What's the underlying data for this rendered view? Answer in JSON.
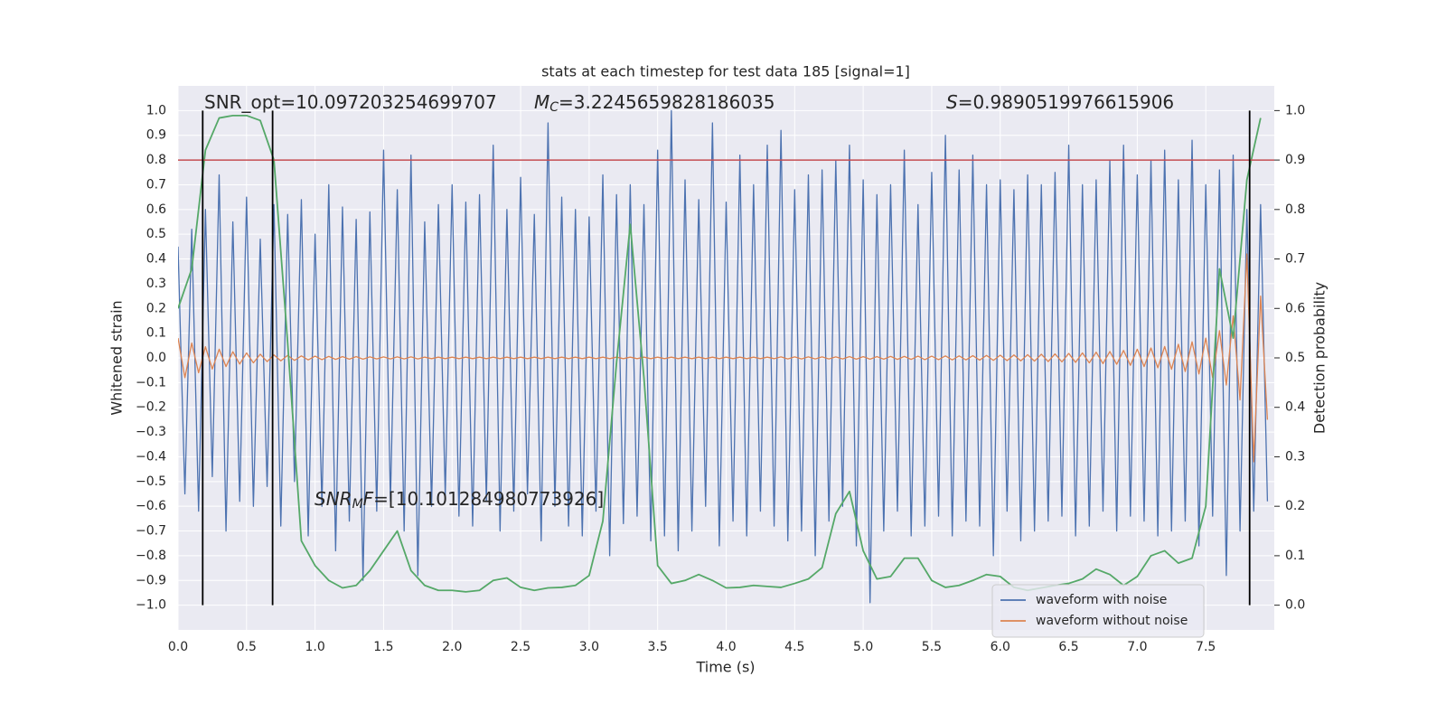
{
  "chart_data": {
    "type": "line",
    "title": "stats at each timestep for test data 185 [signal=1]",
    "xlabel": "Time (s)",
    "ylabel": "Whitened strain",
    "y2label": "Detection probability",
    "xlim": [
      0,
      8.0
    ],
    "ylim": [
      -1.1,
      1.1
    ],
    "y2lim": [
      -0.05,
      1.05
    ],
    "xticks": [
      {
        "value": 0,
        "label": "0.0"
      },
      0.5,
      {
        "value": 1,
        "label": "1.0"
      },
      1.5,
      {
        "value": 2,
        "label": "2.0"
      },
      2.5,
      {
        "value": 3,
        "label": "3.0"
      },
      3.5,
      {
        "value": 4,
        "label": "4.0"
      },
      4.5,
      {
        "value": 5,
        "label": "5.0"
      },
      5.5,
      {
        "value": 6,
        "label": "6.0"
      },
      6.5,
      {
        "value": 7,
        "label": "7.0"
      },
      7.5
    ],
    "yticks": [
      {
        "value": -1,
        "label": "−1.0"
      },
      {
        "value": -0.9,
        "label": "−0.9"
      },
      {
        "value": -0.8,
        "label": "−0.8"
      },
      {
        "value": -0.7,
        "label": "−0.7"
      },
      {
        "value": -0.6,
        "label": "−0.6"
      },
      {
        "value": -0.5,
        "label": "−0.5"
      },
      {
        "value": -0.4,
        "label": "−0.4"
      },
      {
        "value": -0.3,
        "label": "−0.3"
      },
      {
        "value": -0.2,
        "label": "−0.2"
      },
      {
        "value": -0.1,
        "label": "−0.1"
      },
      {
        "value": 0,
        "label": "0.0"
      },
      0.1,
      0.2,
      0.3,
      0.4,
      0.5,
      0.6,
      0.7,
      0.8,
      0.9,
      {
        "value": 1,
        "label": "1.0"
      }
    ],
    "y2ticks": [
      {
        "value": 0,
        "label": "0.0"
      },
      0.1,
      0.2,
      0.3,
      0.4,
      0.5,
      0.6,
      0.7,
      0.8,
      0.9,
      {
        "value": 1,
        "label": "1.0"
      }
    ],
    "grid": true,
    "legend": "lower right",
    "x": [
      0,
      0.05,
      0.1,
      0.15,
      0.2,
      0.25,
      0.3,
      0.35,
      0.4,
      0.45,
      0.5,
      0.55,
      0.6,
      0.65,
      0.7,
      0.75,
      0.8,
      0.85,
      0.9,
      0.95,
      1,
      1.05,
      1.1,
      1.15,
      1.2,
      1.25,
      1.3,
      1.35,
      1.4,
      1.45,
      1.5,
      1.55,
      1.6,
      1.65,
      1.7,
      1.75,
      1.8,
      1.85,
      1.9,
      1.95,
      2,
      2.05,
      2.1,
      2.15,
      2.2,
      2.25,
      2.3,
      2.35,
      2.4,
      2.45,
      2.5,
      2.55,
      2.6,
      2.65,
      2.7,
      2.75,
      2.8,
      2.85,
      2.9,
      2.95,
      3,
      3.05,
      3.1,
      3.15,
      3.2,
      3.25,
      3.3,
      3.35,
      3.4,
      3.45,
      3.5,
      3.55,
      3.6,
      3.65,
      3.7,
      3.75,
      3.8,
      3.85,
      3.9,
      3.95,
      4,
      4.05,
      4.1,
      4.15,
      4.2,
      4.25,
      4.3,
      4.35,
      4.4,
      4.45,
      4.5,
      4.55,
      4.6,
      4.65,
      4.7,
      4.75,
      4.8,
      4.85,
      4.9,
      4.95,
      5,
      5.05,
      5.1,
      5.15,
      5.2,
      5.25,
      5.3,
      5.35,
      5.4,
      5.45,
      5.5,
      5.55,
      5.6,
      5.65,
      5.7,
      5.75,
      5.8,
      5.85,
      5.9,
      5.95,
      6,
      6.05,
      6.1,
      6.15,
      6.2,
      6.25,
      6.3,
      6.35,
      6.4,
      6.45,
      6.5,
      6.55,
      6.6,
      6.65,
      6.7,
      6.75,
      6.8,
      6.85,
      6.9,
      6.95,
      7,
      7.05,
      7.1,
      7.15,
      7.2,
      7.25,
      7.3,
      7.35,
      7.4,
      7.45,
      7.5,
      7.55,
      7.6,
      7.65,
      7.7,
      7.75,
      7.8,
      7.85,
      7.9,
      7.95
    ],
    "series": [
      {
        "name": "waveform with noise",
        "color": "#4c72b0",
        "values": [
          0.45,
          -0.55,
          0.52,
          -0.62,
          0.6,
          -0.48,
          0.74,
          -0.7,
          0.55,
          -0.58,
          0.65,
          -0.6,
          0.48,
          -0.52,
          0.62,
          -0.68,
          0.58,
          -0.5,
          0.64,
          -0.72,
          0.5,
          -0.6,
          0.7,
          -0.78,
          0.61,
          -0.66,
          0.56,
          -0.9,
          0.59,
          -0.62,
          0.84,
          -0.58,
          0.68,
          -0.7,
          0.82,
          -0.88,
          0.55,
          -0.6,
          0.62,
          -0.56,
          0.7,
          -0.64,
          0.63,
          -0.68,
          0.66,
          -0.58,
          0.86,
          -0.7,
          0.6,
          -0.62,
          0.73,
          -0.55,
          0.58,
          -0.74,
          0.95,
          -0.6,
          0.65,
          -0.68,
          0.6,
          -0.72,
          0.57,
          -0.62,
          0.74,
          -0.8,
          0.66,
          -0.67,
          0.7,
          -0.64,
          0.62,
          -0.74,
          0.84,
          -0.72,
          1.0,
          -0.78,
          0.72,
          -0.7,
          0.64,
          -0.6,
          0.95,
          -0.76,
          0.63,
          -0.66,
          0.82,
          -0.72,
          0.7,
          -0.62,
          0.86,
          -0.68,
          0.92,
          -0.74,
          0.68,
          -0.7,
          0.74,
          -0.8,
          0.76,
          -0.66,
          0.8,
          -0.6,
          0.86,
          -0.76,
          0.72,
          -0.99,
          0.66,
          -0.7,
          0.7,
          -0.62,
          0.84,
          -0.72,
          0.62,
          -0.68,
          0.75,
          -0.64,
          0.9,
          -0.72,
          0.76,
          -0.66,
          0.82,
          -0.68,
          0.7,
          -0.8,
          0.72,
          -0.62,
          0.68,
          -0.74,
          0.74,
          -0.7,
          0.7,
          -0.66,
          0.75,
          -0.64,
          0.86,
          -0.72,
          0.7,
          -0.68,
          0.72,
          -0.62,
          0.8,
          -0.7,
          0.86,
          -0.64,
          0.74,
          -0.66,
          0.8,
          -0.72,
          0.84,
          -0.7,
          0.72,
          -0.66,
          0.88,
          -0.76,
          0.7,
          -0.64,
          0.76,
          -0.88,
          0.82,
          -0.7,
          0.6,
          -0.62,
          0.62,
          -0.58
        ]
      },
      {
        "name": "waveform without noise",
        "color": "#dd8452",
        "values": [
          0.08,
          -0.08,
          0.06,
          -0.06,
          0.045,
          -0.045,
          0.035,
          -0.035,
          0.025,
          -0.025,
          0.02,
          -0.02,
          0.015,
          -0.015,
          0.012,
          -0.012,
          0.01,
          -0.01,
          0.008,
          -0.008,
          0.007,
          -0.007,
          0.006,
          -0.006,
          0.005,
          -0.005,
          0.005,
          -0.005,
          0.004,
          -0.004,
          0.004,
          -0.004,
          0.004,
          -0.004,
          0.004,
          -0.004,
          0.003,
          -0.003,
          0.003,
          -0.003,
          0.003,
          -0.003,
          0.003,
          -0.003,
          0.003,
          -0.003,
          0.003,
          -0.003,
          0.003,
          -0.003,
          0.003,
          -0.003,
          0.003,
          -0.003,
          0.003,
          -0.003,
          0.003,
          -0.003,
          0.003,
          -0.003,
          0.003,
          -0.003,
          0.003,
          -0.003,
          0.003,
          -0.003,
          0.003,
          -0.003,
          0.003,
          -0.003,
          0.003,
          -0.003,
          0.003,
          -0.003,
          0.003,
          -0.003,
          0.003,
          -0.003,
          0.003,
          -0.003,
          0.003,
          -0.003,
          0.003,
          -0.003,
          0.003,
          -0.003,
          0.003,
          -0.003,
          0.004,
          -0.004,
          0.004,
          -0.004,
          0.004,
          -0.004,
          0.004,
          -0.004,
          0.004,
          -0.004,
          0.005,
          -0.005,
          0.005,
          -0.005,
          0.005,
          -0.005,
          0.006,
          -0.006,
          0.006,
          -0.006,
          0.007,
          -0.007,
          0.007,
          -0.007,
          0.008,
          -0.008,
          0.008,
          -0.008,
          0.009,
          -0.009,
          0.01,
          -0.01,
          0.011,
          -0.011,
          0.012,
          -0.012,
          0.013,
          -0.013,
          0.015,
          -0.015,
          0.016,
          -0.016,
          0.018,
          -0.018,
          0.02,
          -0.02,
          0.023,
          -0.023,
          0.026,
          -0.026,
          0.03,
          -0.03,
          0.035,
          -0.035,
          0.04,
          -0.04,
          0.046,
          -0.046,
          0.055,
          -0.055,
          0.065,
          -0.065,
          0.08,
          -0.08,
          0.11,
          -0.11,
          0.17,
          -0.17,
          0.42,
          -0.42,
          0.25,
          -0.25
        ]
      },
      {
        "color": "#55a868",
        "axis": "y2",
        "x": [
          0,
          0.1,
          0.2,
          0.3,
          0.4,
          0.5,
          0.6,
          0.7,
          0.8,
          0.9,
          1,
          1.1,
          1.2,
          1.3,
          1.4,
          1.5,
          1.6,
          1.7,
          1.8,
          1.9,
          2,
          2.1,
          2.2,
          2.3,
          2.4,
          2.5,
          2.6,
          2.7,
          2.8,
          2.9,
          3,
          3.1,
          3.2,
          3.3,
          3.4,
          3.5,
          3.6,
          3.7,
          3.8,
          3.9,
          4,
          4.1,
          4.2,
          4.3,
          4.4,
          4.5,
          4.6,
          4.7,
          4.8,
          4.9,
          5,
          5.1,
          5.2,
          5.3,
          5.4,
          5.5,
          5.6,
          5.7,
          5.8,
          5.9,
          6,
          6.1,
          6.2,
          6.3,
          6.4,
          6.5,
          6.6,
          6.7,
          6.8,
          6.9,
          7,
          7.1,
          7.2,
          7.3,
          7.4,
          7.5,
          7.6,
          7.7,
          7.8,
          7.9
        ],
        "values": [
          0.6,
          0.68,
          0.92,
          0.985,
          0.99,
          0.99,
          0.98,
          0.9,
          0.53,
          0.13,
          0.08,
          0.05,
          0.035,
          0.04,
          0.07,
          0.11,
          0.15,
          0.07,
          0.04,
          0.03,
          0.03,
          0.027,
          0.03,
          0.05,
          0.055,
          0.036,
          0.03,
          0.035,
          0.036,
          0.04,
          0.06,
          0.17,
          0.49,
          0.77,
          0.46,
          0.08,
          0.044,
          0.05,
          0.062,
          0.05,
          0.035,
          0.036,
          0.04,
          0.038,
          0.036,
          0.044,
          0.053,
          0.076,
          0.185,
          0.23,
          0.11,
          0.053,
          0.058,
          0.095,
          0.095,
          0.05,
          0.036,
          0.04,
          0.05,
          0.062,
          0.058,
          0.036,
          0.03,
          0.035,
          0.04,
          0.044,
          0.053,
          0.073,
          0.062,
          0.04,
          0.058,
          0.1,
          0.11,
          0.085,
          0.095,
          0.2,
          0.68,
          0.54,
          0.86,
          0.985
        ]
      }
    ],
    "threshold": {
      "value": 0.9,
      "color": "#c44e52",
      "axis": "y2"
    },
    "vlines": {
      "x": [
        0.18,
        0.69,
        7.82
      ],
      "ymin": 0,
      "ymax": 1,
      "color": "#000000",
      "axis": "y2"
    },
    "annotations": [
      {
        "text": "SNR_opt=10.097203254699707"
      },
      {
        "symbol": "M",
        "subscript": "C",
        "text": "=3.2245659828186035"
      },
      {
        "symbol": "S",
        "text": "=0.9890519976615906"
      },
      {
        "symbol": "SNR",
        "subscript": "M",
        "suffix": "F",
        "text": "=[10.101284980773926]"
      }
    ]
  }
}
